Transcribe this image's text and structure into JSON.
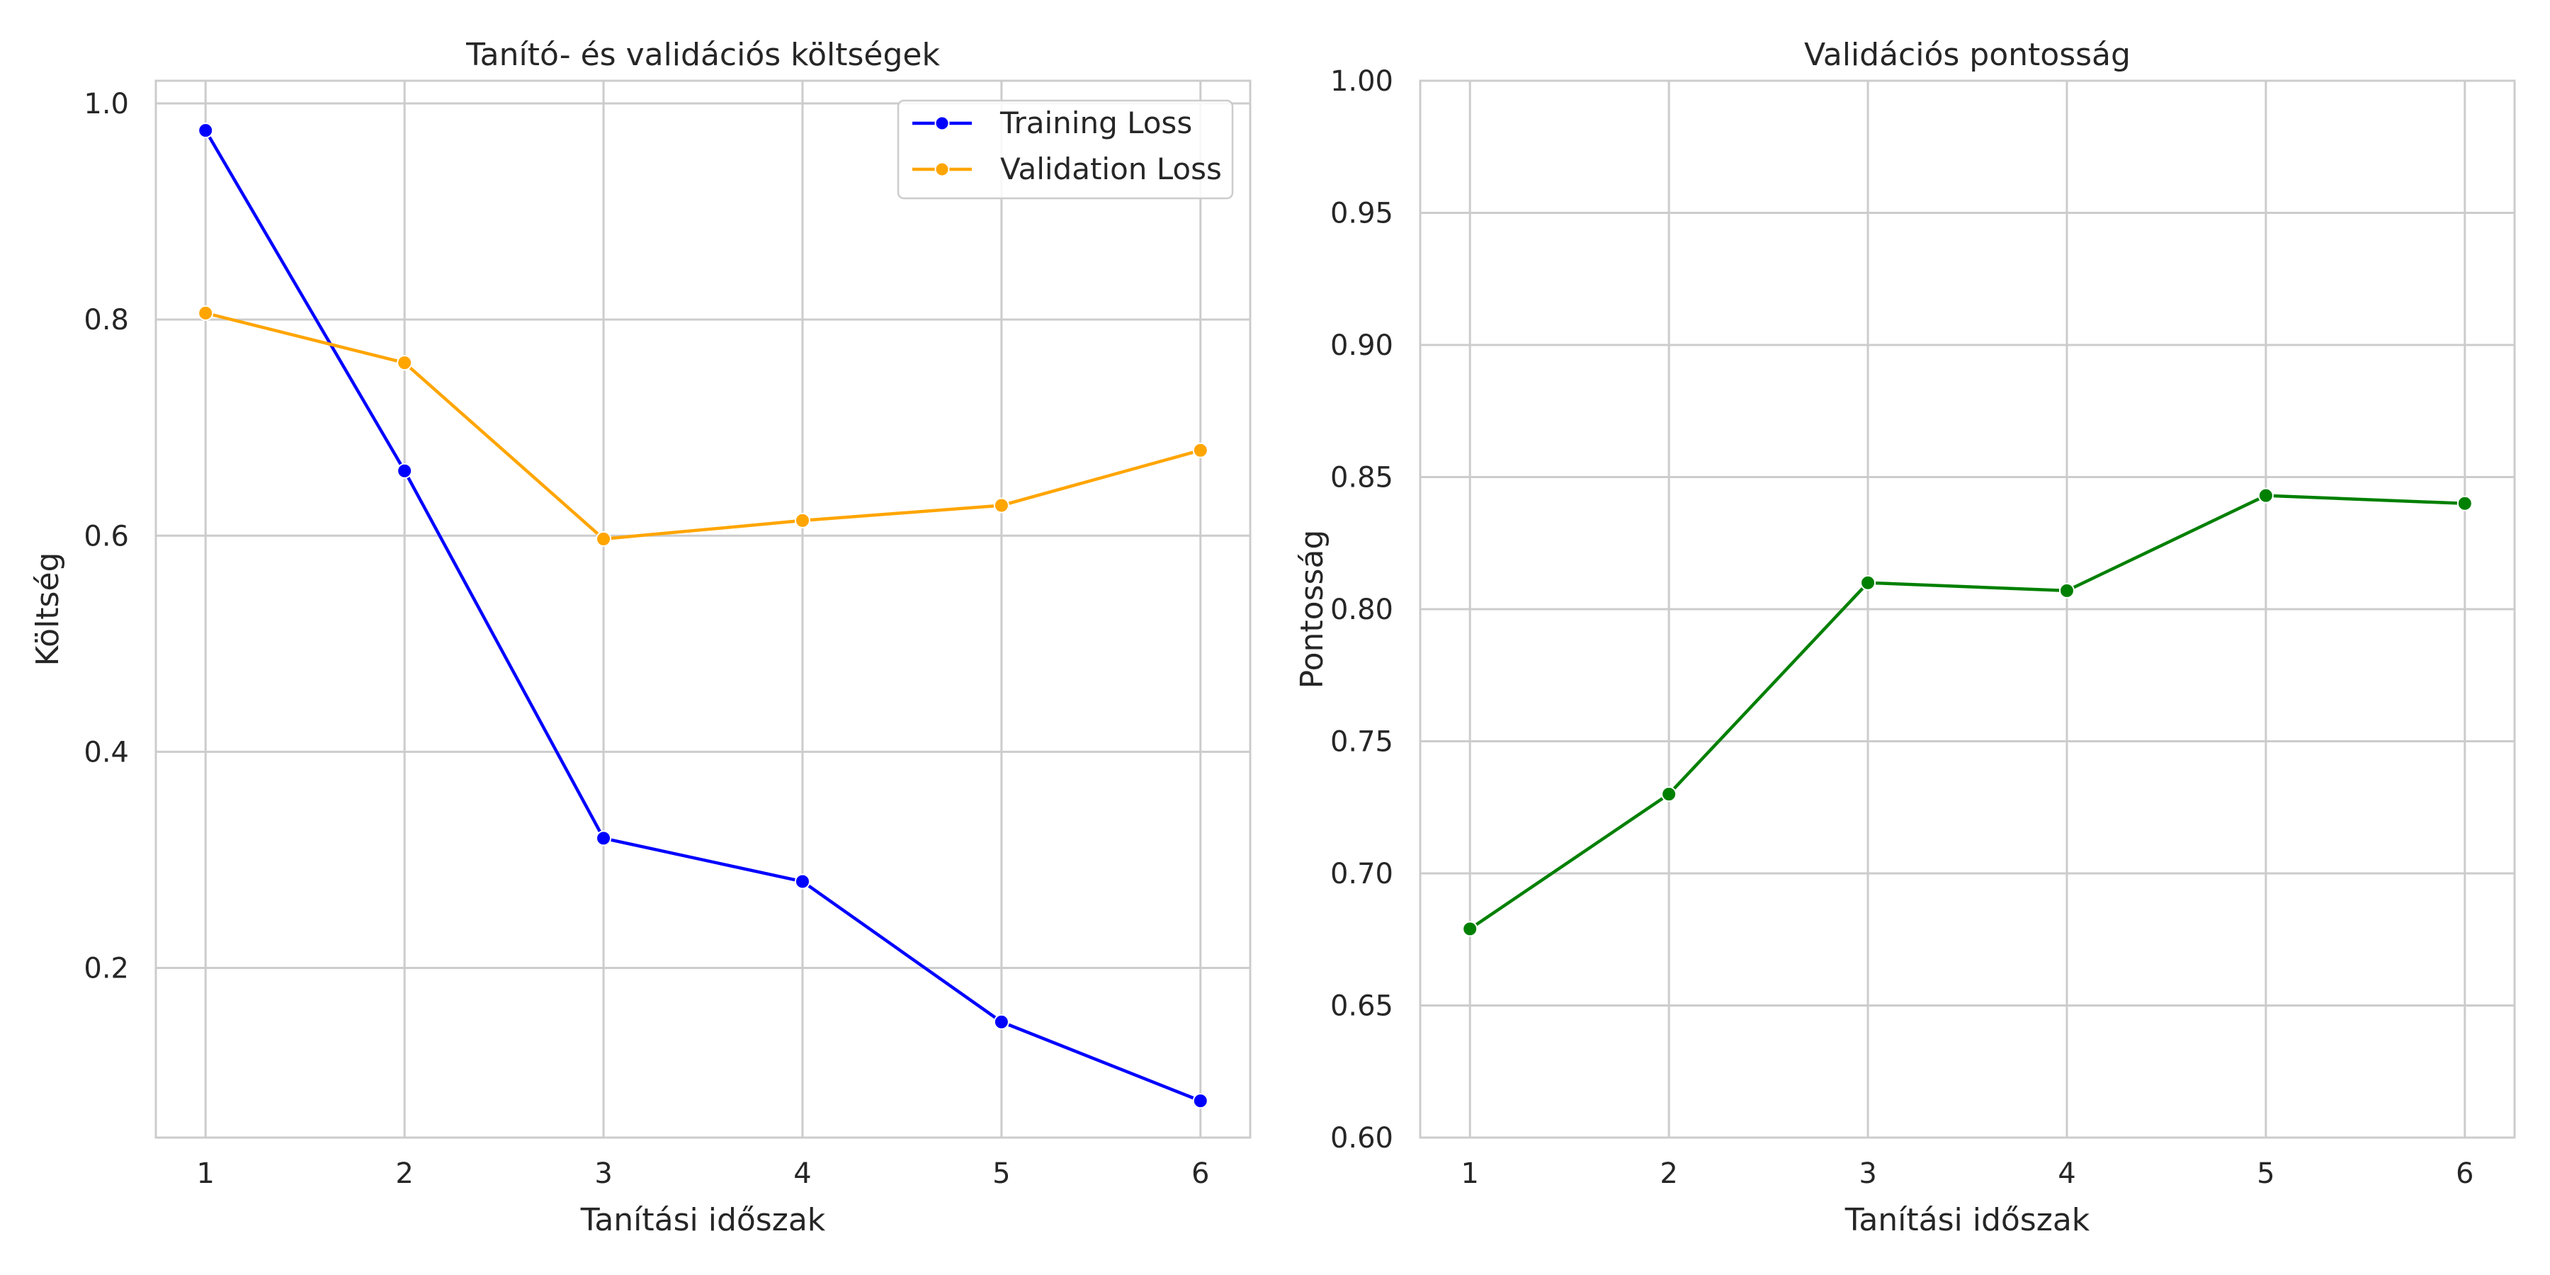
{
  "chart_data": [
    {
      "type": "line",
      "title": "Tanító- és validációs költségek",
      "xlabel": "Tanítási időszak",
      "ylabel": "Költség",
      "x": [
        1,
        2,
        3,
        4,
        5,
        6
      ],
      "xticks": [
        "1",
        "2",
        "3",
        "4",
        "5",
        "6"
      ],
      "yticks": [
        "0.2",
        "0.4",
        "0.6",
        "0.8",
        "1.0"
      ],
      "ytick_values": [
        0.2,
        0.4,
        0.6,
        0.8,
        1.0
      ],
      "xlim": [
        0.75,
        6.25
      ],
      "ylim": [
        0.043,
        1.021
      ],
      "grid": true,
      "legend_position": "top-right",
      "series": [
        {
          "name": "Training Loss",
          "color": "#0000ff",
          "values": [
            0.975,
            0.66,
            0.32,
            0.28,
            0.15,
            0.077
          ]
        },
        {
          "name": "Validation Loss",
          "color": "#ffa500",
          "values": [
            0.806,
            0.76,
            0.597,
            0.614,
            0.628,
            0.679
          ]
        }
      ]
    },
    {
      "type": "line",
      "title": "Validációs pontosság",
      "xlabel": "Tanítási időszak",
      "ylabel": "Pontosság",
      "x": [
        1,
        2,
        3,
        4,
        5,
        6
      ],
      "xticks": [
        "1",
        "2",
        "3",
        "4",
        "5",
        "6"
      ],
      "yticks": [
        "0.60",
        "0.65",
        "0.70",
        "0.75",
        "0.80",
        "0.85",
        "0.90",
        "0.95",
        "1.00"
      ],
      "ytick_values": [
        0.6,
        0.65,
        0.7,
        0.75,
        0.8,
        0.85,
        0.9,
        0.95,
        1.0
      ],
      "xlim": [
        0.75,
        6.25
      ],
      "ylim": [
        0.6,
        1.0
      ],
      "grid": true,
      "series": [
        {
          "color": "#008000",
          "values": [
            0.679,
            0.73,
            0.81,
            0.807,
            0.843,
            0.84
          ]
        }
      ]
    }
  ]
}
